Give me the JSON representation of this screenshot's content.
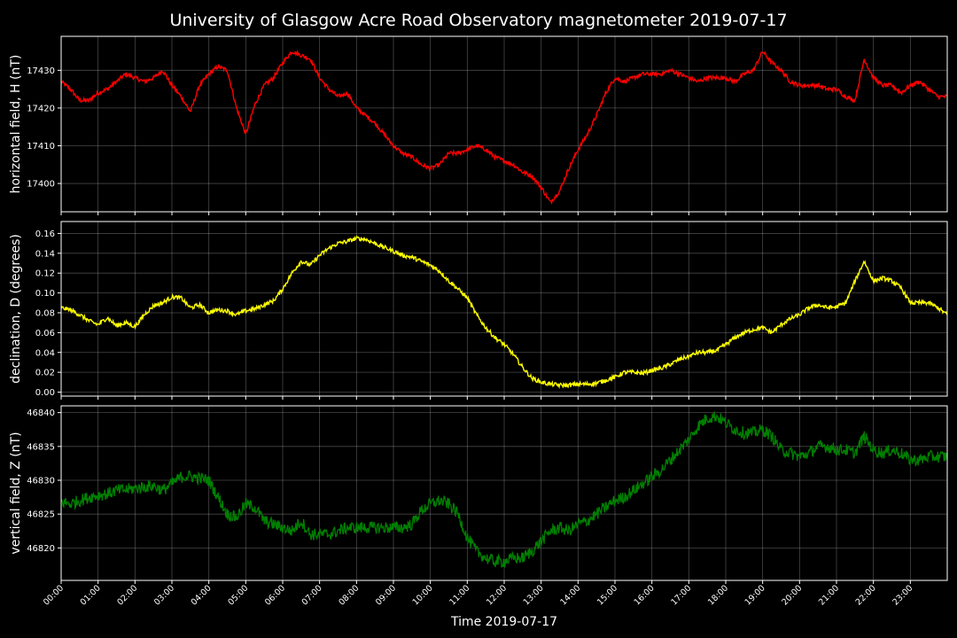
{
  "title": "University of Glasgow Acre Road Observatory magnetometer 2019-07-17",
  "chart_data": [
    {
      "type": "line",
      "name": "horizontal",
      "ylabel": "horizontal field, H (nT)",
      "color": "#ff0000",
      "ylim": [
        17392.5,
        17439
      ],
      "yticks": [
        17400,
        17410,
        17420,
        17430
      ],
      "x": [
        0,
        0.25,
        0.5,
        0.75,
        1,
        1.25,
        1.5,
        1.75,
        2,
        2.25,
        2.5,
        2.75,
        3,
        3.25,
        3.5,
        3.75,
        4,
        4.25,
        4.5,
        4.75,
        5,
        5.25,
        5.5,
        5.75,
        6,
        6.25,
        6.5,
        6.75,
        7,
        7.25,
        7.5,
        7.75,
        8,
        8.25,
        8.5,
        8.75,
        9,
        9.25,
        9.5,
        9.75,
        10,
        10.25,
        10.5,
        10.75,
        11,
        11.25,
        11.5,
        11.75,
        12,
        12.25,
        12.5,
        12.75,
        13,
        13.25,
        13.5,
        13.75,
        14,
        14.25,
        14.5,
        14.75,
        15,
        15.25,
        15.5,
        15.75,
        16,
        16.25,
        16.5,
        16.75,
        17,
        17.25,
        17.5,
        17.75,
        18,
        18.25,
        18.5,
        18.75,
        19,
        19.25,
        19.5,
        19.75,
        20,
        20.25,
        20.5,
        20.75,
        21,
        21.25,
        21.5,
        21.75,
        22,
        22.25,
        22.5,
        22.75,
        23,
        23.25,
        23.5,
        23.75,
        24
      ],
      "y": [
        17427,
        17425,
        17422,
        17422,
        17424,
        17425,
        17427,
        17429,
        17428,
        17427,
        17428,
        17430,
        17426,
        17423,
        17419,
        17426,
        17429,
        17431,
        17430,
        17420,
        17413,
        17421,
        17426,
        17428,
        17432,
        17435,
        17434,
        17433,
        17428,
        17425,
        17423,
        17424,
        17420,
        17418,
        17416,
        17413,
        17410,
        17408,
        17407,
        17405,
        17404,
        17405,
        17408,
        17408,
        17409,
        17410,
        17409,
        17407,
        17406,
        17405,
        17403,
        17402,
        17399,
        17395,
        17398,
        17404,
        17409,
        17413,
        17418,
        17424,
        17428,
        17427,
        17428,
        17429,
        17429,
        17429,
        17430,
        17429,
        17428,
        17427,
        17428,
        17428,
        17428,
        17427,
        17429,
        17430,
        17435,
        17432,
        17430,
        17427,
        17426,
        17426,
        17426,
        17425,
        17425,
        17423,
        17422,
        17433,
        17428,
        17426,
        17426,
        17424,
        17426,
        17427,
        17425,
        17423,
        17423
      ]
    },
    {
      "type": "line",
      "name": "declination",
      "ylabel": "declination, D (degrees)",
      "color": "#ffff00",
      "ylim": [
        -0.004,
        0.172
      ],
      "yticks": [
        0.0,
        0.02,
        0.04,
        0.06,
        0.08,
        0.1,
        0.12,
        0.14,
        0.16
      ],
      "ytick_labels": [
        "0.00",
        "0.02",
        "0.04",
        "0.06",
        "0.08",
        "0.10",
        "0.12",
        "0.14",
        "0.16"
      ],
      "x": [
        0,
        0.25,
        0.5,
        0.75,
        1,
        1.25,
        1.5,
        1.75,
        2,
        2.25,
        2.5,
        2.75,
        3,
        3.25,
        3.5,
        3.75,
        4,
        4.25,
        4.5,
        4.75,
        5,
        5.25,
        5.5,
        5.75,
        6,
        6.25,
        6.5,
        6.75,
        7,
        7.25,
        7.5,
        7.75,
        8,
        8.25,
        8.5,
        8.75,
        9,
        9.25,
        9.5,
        9.75,
        10,
        10.25,
        10.5,
        10.75,
        11,
        11.25,
        11.5,
        11.75,
        12,
        12.25,
        12.5,
        12.75,
        13,
        13.25,
        13.5,
        13.75,
        14,
        14.25,
        14.5,
        14.75,
        15,
        15.25,
        15.5,
        15.75,
        16,
        16.25,
        16.5,
        16.75,
        17,
        17.25,
        17.5,
        17.75,
        18,
        18.25,
        18.5,
        18.75,
        19,
        19.25,
        19.5,
        19.75,
        20,
        20.25,
        20.5,
        20.75,
        21,
        21.25,
        21.5,
        21.75,
        22,
        22.25,
        22.5,
        22.75,
        23,
        23.25,
        23.5,
        23.75,
        24
      ],
      "y": [
        0.085,
        0.083,
        0.078,
        0.072,
        0.068,
        0.075,
        0.067,
        0.07,
        0.066,
        0.078,
        0.087,
        0.09,
        0.096,
        0.095,
        0.085,
        0.088,
        0.08,
        0.083,
        0.082,
        0.078,
        0.082,
        0.084,
        0.088,
        0.092,
        0.104,
        0.12,
        0.132,
        0.128,
        0.138,
        0.145,
        0.15,
        0.152,
        0.155,
        0.154,
        0.15,
        0.146,
        0.142,
        0.138,
        0.136,
        0.132,
        0.128,
        0.122,
        0.112,
        0.104,
        0.095,
        0.078,
        0.065,
        0.055,
        0.048,
        0.038,
        0.025,
        0.014,
        0.01,
        0.008,
        0.007,
        0.007,
        0.008,
        0.008,
        0.009,
        0.012,
        0.015,
        0.02,
        0.02,
        0.019,
        0.022,
        0.024,
        0.028,
        0.033,
        0.036,
        0.04,
        0.04,
        0.042,
        0.048,
        0.055,
        0.06,
        0.063,
        0.065,
        0.06,
        0.068,
        0.074,
        0.078,
        0.085,
        0.088,
        0.085,
        0.086,
        0.09,
        0.112,
        0.132,
        0.112,
        0.115,
        0.112,
        0.105,
        0.09,
        0.09,
        0.09,
        0.085,
        0.078
      ]
    },
    {
      "type": "line",
      "name": "vertical",
      "ylabel": "vertical field, Z (nT)",
      "color": "#008000",
      "ylim": [
        46815.2,
        46841
      ],
      "yticks": [
        46820,
        46825,
        46830,
        46835,
        46840
      ],
      "x": [
        0,
        0.25,
        0.5,
        0.75,
        1,
        1.25,
        1.5,
        1.75,
        2,
        2.25,
        2.5,
        2.75,
        3,
        3.25,
        3.5,
        3.75,
        4,
        4.25,
        4.5,
        4.75,
        5,
        5.25,
        5.5,
        5.75,
        6,
        6.25,
        6.5,
        6.75,
        7,
        7.25,
        7.5,
        7.75,
        8,
        8.25,
        8.5,
        8.75,
        9,
        9.25,
        9.5,
        9.75,
        10,
        10.25,
        10.5,
        10.75,
        11,
        11.25,
        11.5,
        11.75,
        12,
        12.25,
        12.5,
        12.75,
        13,
        13.25,
        13.5,
        13.75,
        14,
        14.25,
        14.5,
        14.75,
        15,
        15.25,
        15.5,
        15.75,
        16,
        16.25,
        16.5,
        16.75,
        17,
        17.25,
        17.5,
        17.75,
        18,
        18.25,
        18.5,
        18.75,
        19,
        19.25,
        19.5,
        19.75,
        20,
        20.25,
        20.5,
        20.75,
        21,
        21.25,
        21.5,
        21.75,
        22,
        22.25,
        22.5,
        22.75,
        23,
        23.25,
        23.5,
        23.75,
        24
      ],
      "y": [
        46826.8,
        46826.5,
        46827.0,
        46827.5,
        46827.8,
        46828.0,
        46828.5,
        46828.6,
        46828.8,
        46829.0,
        46829.2,
        46828.5,
        46829.5,
        46830.5,
        46830.6,
        46830.3,
        46830.0,
        46827.5,
        46825.0,
        46824.5,
        46826.5,
        46826.0,
        46824.0,
        46823.5,
        46823.0,
        46822.5,
        46824.0,
        46822.0,
        46822.0,
        46822.0,
        46822.5,
        46823.0,
        46823.0,
        46823.0,
        46823.0,
        46823.0,
        46823.0,
        46823.0,
        46823.5,
        46825.5,
        46826.5,
        46827.0,
        46826.5,
        46825.0,
        46821.5,
        46819.5,
        46818.5,
        46818.0,
        46818.0,
        46818.5,
        46818.5,
        46819.5,
        46821.0,
        46822.5,
        46823.0,
        46822.5,
        46823.5,
        46824.0,
        46825.0,
        46826.0,
        46827.0,
        46827.5,
        46828.5,
        46829.5,
        46830.5,
        46831.5,
        46833.0,
        46834.5,
        46836.0,
        46838.0,
        46839.2,
        46839.5,
        46838.5,
        46837.5,
        46837.0,
        46837.0,
        46837.5,
        46836.5,
        46834.5,
        46834.0,
        46833.5,
        46834.0,
        46835.0,
        46835.0,
        46834.5,
        46834.5,
        46834.0,
        46836.5,
        46834.5,
        46834.0,
        46834.5,
        46834.0,
        46833.0,
        46833.0,
        46833.5,
        46833.5,
        46833.5
      ]
    }
  ],
  "x_axis": {
    "label": "Time 2019-07-17",
    "range_hours": [
      0,
      24
    ],
    "ticks": [
      "00:00",
      "01:00",
      "02:00",
      "03:00",
      "04:00",
      "05:00",
      "06:00",
      "07:00",
      "08:00",
      "09:00",
      "10:00",
      "11:00",
      "12:00",
      "13:00",
      "14:00",
      "15:00",
      "16:00",
      "17:00",
      "18:00",
      "19:00",
      "20:00",
      "21:00",
      "22:00",
      "23:00"
    ]
  },
  "grid": true,
  "background": "#000000"
}
